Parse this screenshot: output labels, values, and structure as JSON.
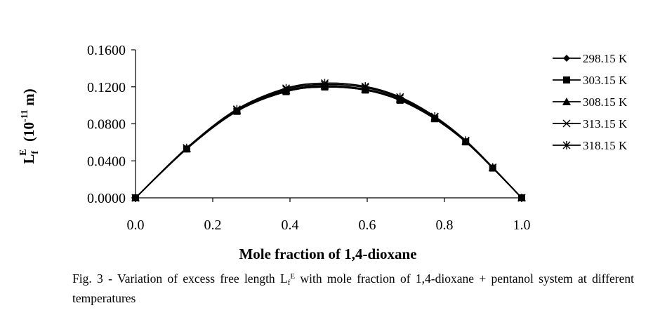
{
  "chart_data": {
    "type": "line",
    "xlabel": "Mole fraction of 1,4-dioxane",
    "ylabel": {
      "main": "L",
      "sub": "f",
      "sup": "E",
      "unit_pre": "  (10",
      "unit_exp": "-11",
      "unit_post": " m)"
    },
    "xlim": [
      0.0,
      1.0
    ],
    "ylim": [
      0.0,
      0.16
    ],
    "x_ticks": [
      "0.0",
      "0.2",
      "0.4",
      "0.6",
      "0.8",
      "1.0"
    ],
    "y_ticks": [
      "0.0000",
      "0.0400",
      "0.0800",
      "0.1200",
      "0.1600"
    ],
    "grid": false,
    "legend_position": "right",
    "x": [
      0.0,
      0.1325,
      0.2625,
      0.39,
      0.49,
      0.595,
      0.685,
      0.775,
      0.855,
      0.925,
      1.0
    ],
    "series": [
      {
        "name": "298.15 K",
        "marker": "diamond",
        "values": [
          0.0,
          0.0528,
          0.0935,
          0.1148,
          0.1198,
          0.1165,
          0.1055,
          0.0855,
          0.0605,
          0.0322,
          0.0
        ]
      },
      {
        "name": "303.15 K",
        "marker": "square",
        "values": [
          0.0,
          0.0528,
          0.0935,
          0.1148,
          0.1198,
          0.1165,
          0.1055,
          0.0855,
          0.0605,
          0.0322,
          0.0
        ]
      },
      {
        "name": "308.15 K",
        "marker": "triangle",
        "values": [
          0.0,
          0.0532,
          0.0942,
          0.1158,
          0.121,
          0.1175,
          0.1065,
          0.0862,
          0.061,
          0.0325,
          0.0
        ]
      },
      {
        "name": "313.15 K",
        "marker": "x",
        "values": [
          0.0,
          0.0536,
          0.095,
          0.1172,
          0.1225,
          0.1192,
          0.1078,
          0.0872,
          0.0615,
          0.0328,
          0.0
        ]
      },
      {
        "name": "318.15 K",
        "marker": "star",
        "values": [
          0.0,
          0.054,
          0.0958,
          0.1185,
          0.124,
          0.1205,
          0.109,
          0.088,
          0.062,
          0.033,
          0.0
        ]
      }
    ]
  },
  "caption": {
    "text_before": "Fig. 3 - Variation of excess free length L",
    "sub": "f",
    "sup": "E",
    "text_after": " with mole fraction of 1,4-dioxane + pentanol system at different temperatures"
  }
}
